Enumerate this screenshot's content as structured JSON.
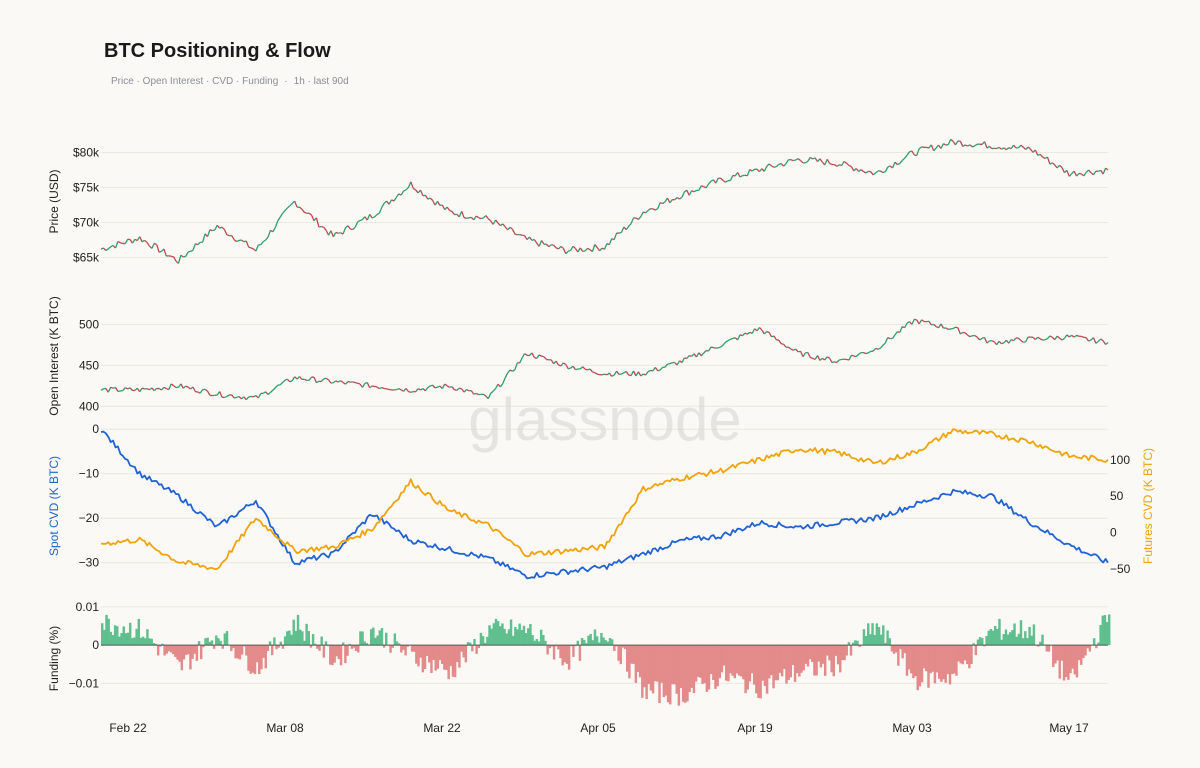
{
  "header": {
    "title": "BTC Positioning & Flow",
    "subtitle_metrics": "Price · Open Interest · CVD · Funding",
    "subtitle_separator": "·",
    "subtitle_range": "1h · last 90d"
  },
  "watermark": "glassnode",
  "colors": {
    "up": "#2e9e6b",
    "down": "#c0474f",
    "spot_cvd": "#1f63d3",
    "futures_cvd": "#f0a30a",
    "funding_pos": "#5fbf8f",
    "funding_neg": "#e38a8a",
    "grid": "#ebe8e2"
  },
  "chart_data": [
    {
      "type": "line",
      "panel": "price",
      "ylabel": "Price (USD)",
      "y_ticks": [
        65000,
        70000,
        75000,
        80000
      ],
      "y_tick_labels": [
        "$65k",
        "$70k",
        "$75k",
        "$80k"
      ],
      "ylim": [
        62500,
        83500
      ],
      "x": [
        "Feb 19",
        "Feb 22",
        "Feb 26",
        "Mar 01",
        "Mar 04",
        "Mar 08",
        "Mar 12",
        "Mar 16",
        "Mar 19",
        "Mar 22",
        "Mar 26",
        "Mar 29",
        "Apr 01",
        "Apr 05",
        "Apr 09",
        "Apr 12",
        "Apr 16",
        "Apr 19",
        "Apr 23",
        "Apr 26",
        "Apr 30",
        "May 03",
        "May 06",
        "May 10",
        "May 13",
        "May 17",
        "May 19"
      ],
      "series": [
        {
          "values": [
            66200,
            67800,
            64500,
            69500,
            66000,
            73000,
            68000,
            71000,
            75500,
            71500,
            70500,
            67500,
            66000,
            66500,
            71500,
            74000,
            76000,
            77500,
            79000,
            78500,
            77000,
            80000,
            81500,
            81000,
            80500,
            77000,
            77500
          ]
        }
      ]
    },
    {
      "type": "line",
      "panel": "open_interest",
      "ylabel": "Open Interest (K BTC)",
      "y_ticks": [
        400,
        450,
        500
      ],
      "y_tick_labels": [
        "400",
        "450",
        "500"
      ],
      "ylim": [
        393,
        530
      ],
      "x": [
        "Feb 19",
        "Feb 22",
        "Feb 26",
        "Mar 01",
        "Mar 04",
        "Mar 08",
        "Mar 12",
        "Mar 16",
        "Mar 19",
        "Mar 22",
        "Mar 26",
        "Mar 29",
        "Apr 01",
        "Apr 05",
        "Apr 09",
        "Apr 12",
        "Apr 16",
        "Apr 19",
        "Apr 23",
        "Apr 26",
        "Apr 30",
        "May 03",
        "May 06",
        "May 10",
        "May 13",
        "May 17",
        "May 19"
      ],
      "series": [
        {
          "values": [
            420,
            420,
            425,
            415,
            410,
            435,
            430,
            425,
            420,
            425,
            410,
            465,
            450,
            440,
            440,
            455,
            475,
            495,
            465,
            455,
            470,
            505,
            495,
            478,
            482,
            485,
            478
          ]
        }
      ]
    },
    {
      "type": "line",
      "panel": "cvd",
      "ylabel": "Spot CVD (K BTC)",
      "y2label": "Futures CVD (K BTC)",
      "y_ticks": [
        -30,
        -20,
        -10,
        0
      ],
      "y_tick_labels": [
        "−30",
        "−20",
        "−10",
        "0"
      ],
      "ylim": [
        -35,
        0.5
      ],
      "y2_ticks": [
        -50,
        0,
        50,
        100
      ],
      "y2_tick_labels": [
        "−50",
        "0",
        "50",
        "100"
      ],
      "y2lim": [
        -72,
        145
      ],
      "x": [
        "Feb 19",
        "Feb 22",
        "Feb 26",
        "Mar 01",
        "Mar 04",
        "Mar 08",
        "Mar 12",
        "Mar 16",
        "Mar 19",
        "Mar 22",
        "Mar 26",
        "Mar 29",
        "Apr 01",
        "Apr 05",
        "Apr 09",
        "Apr 12",
        "Apr 16",
        "Apr 19",
        "Apr 23",
        "Apr 26",
        "Apr 30",
        "May 03",
        "May 06",
        "May 10",
        "May 13",
        "May 17",
        "May 19"
      ],
      "series": [
        {
          "name": "Spot CVD (K BTC)",
          "axis": "left",
          "values": [
            0,
            -10,
            -15,
            -22,
            -16,
            -30,
            -28,
            -19,
            -25,
            -27,
            -29,
            -33,
            -32,
            -31,
            -28,
            -25,
            -24,
            -21,
            -22,
            -21,
            -20,
            -17,
            -14,
            -15,
            -21,
            -26,
            -30
          ]
        },
        {
          "name": "Futures CVD (K BTC)",
          "axis": "right",
          "values": [
            -15,
            -10,
            -40,
            -50,
            20,
            -25,
            -20,
            5,
            70,
            30,
            10,
            -30,
            -25,
            -20,
            60,
            75,
            85,
            100,
            115,
            110,
            95,
            110,
            140,
            135,
            125,
            105,
            100
          ]
        }
      ]
    },
    {
      "type": "bar",
      "panel": "funding",
      "ylabel": "Funding (%)",
      "y_ticks": [
        -0.01,
        0,
        0.01
      ],
      "y_tick_labels": [
        "−0.01",
        "0",
        "0.01"
      ],
      "ylim": [
        -0.018,
        0.011
      ],
      "x": [
        "Feb 19",
        "Feb 22",
        "Feb 26",
        "Mar 01",
        "Mar 04",
        "Mar 08",
        "Mar 12",
        "Mar 16",
        "Mar 19",
        "Mar 22",
        "Mar 26",
        "Mar 29",
        "Apr 01",
        "Apr 05",
        "Apr 09",
        "Apr 12",
        "Apr 16",
        "Apr 19",
        "Apr 23",
        "Apr 26",
        "Apr 30",
        "May 03",
        "May 06",
        "May 10",
        "May 13",
        "May 17",
        "May 19"
      ],
      "series": [
        {
          "values": [
            0.006,
            0.004,
            -0.006,
            0.003,
            -0.006,
            0.006,
            -0.004,
            0.004,
            -0.003,
            -0.007,
            0.004,
            0.004,
            -0.004,
            0.004,
            -0.012,
            -0.013,
            -0.008,
            -0.011,
            -0.007,
            -0.005,
            0.005,
            -0.009,
            -0.008,
            0.004,
            0.004,
            -0.01,
            0.008
          ]
        }
      ]
    }
  ],
  "x_axis": {
    "tick_labels": [
      "Feb 22",
      "Mar 08",
      "Mar 22",
      "Apr 05",
      "Apr 19",
      "May 03",
      "May 17"
    ]
  }
}
